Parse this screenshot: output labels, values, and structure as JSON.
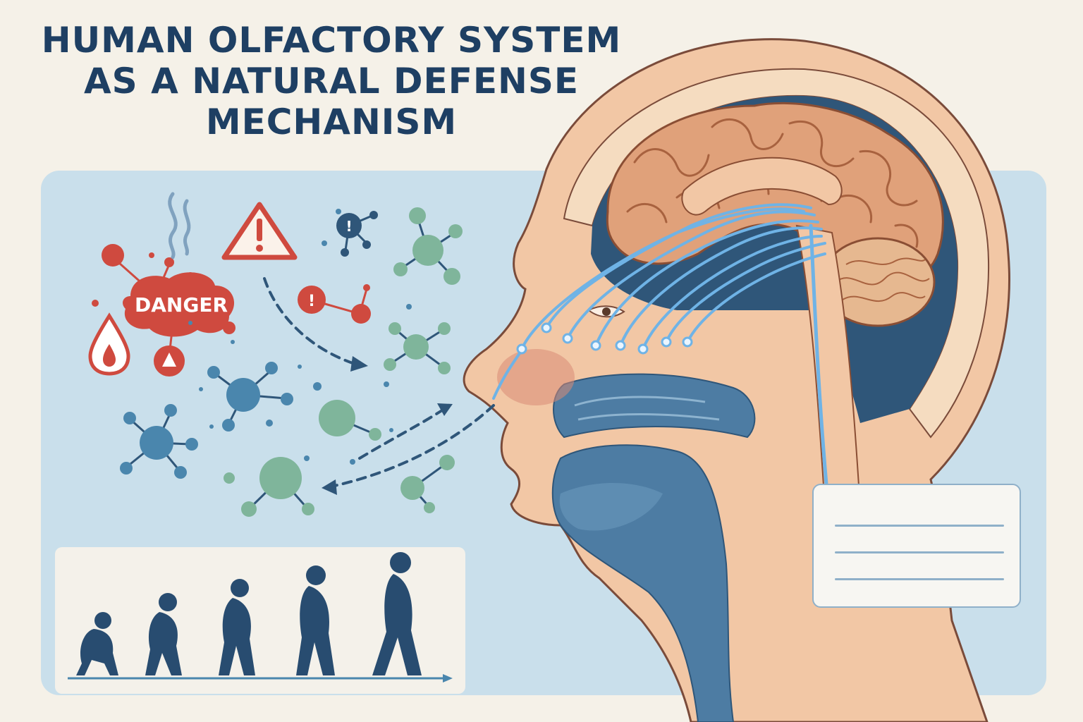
{
  "title": {
    "line1": "HUMAN OLFACTORY SYSTEM",
    "line2": "AS A NATURAL DEFENSE",
    "line3": "MECHANISM"
  },
  "danger_label": "DANGER",
  "colors": {
    "title": "#1e3f63",
    "panel": "#c9dfeb",
    "skin": "#f2c7a5",
    "brain": "#e0a17a",
    "danger_red": "#cf4a3f",
    "molecule_blue": "#4a86ad",
    "molecule_green": "#7fb59b",
    "nerve": "#6fb3e6"
  },
  "icons": [
    "warning-triangle-icon",
    "fire-drop-icon",
    "smoke-icon",
    "exclamation-icon"
  ],
  "evolution_stages": 5
}
